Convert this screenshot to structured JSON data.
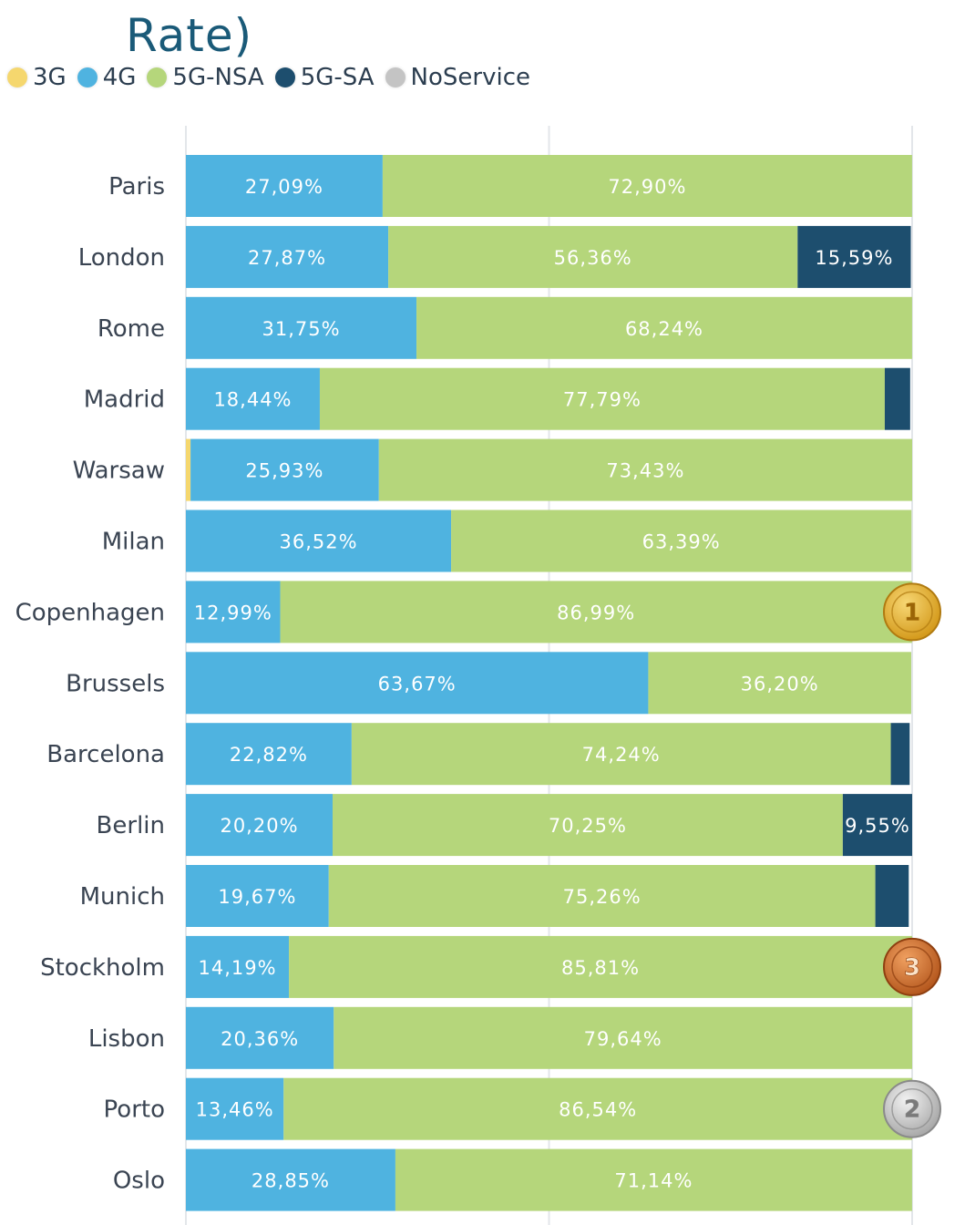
{
  "chart_data": {
    "type": "bar",
    "orientation": "horizontal",
    "stacked": true,
    "title": "Rate)",
    "categories": [
      "Paris",
      "London",
      "Rome",
      "Madrid",
      "Warsaw",
      "Milan",
      "Copenhagen",
      "Brussels",
      "Barcelona",
      "Berlin",
      "Munich",
      "Stockholm",
      "Lisbon",
      "Porto",
      "Oslo"
    ],
    "series": [
      {
        "name": "3G",
        "color": "#f5d76e",
        "values": [
          0,
          0,
          0,
          0,
          0.64,
          0,
          0,
          0,
          0,
          0,
          0,
          0,
          0,
          0,
          0
        ]
      },
      {
        "name": "4G",
        "color": "#4fb3e0",
        "values": [
          27.09,
          27.87,
          31.75,
          18.44,
          25.93,
          36.52,
          12.99,
          63.67,
          22.82,
          20.2,
          19.67,
          14.19,
          20.36,
          13.46,
          28.85
        ]
      },
      {
        "name": "5G-NSA",
        "color": "#b5d67b",
        "values": [
          72.9,
          56.36,
          68.24,
          77.79,
          73.43,
          63.39,
          86.99,
          36.2,
          74.24,
          70.25,
          75.26,
          85.81,
          79.64,
          86.54,
          71.14
        ]
      },
      {
        "name": "5G-SA",
        "color": "#1d4e6e",
        "values": [
          0,
          15.59,
          0,
          3.5,
          0,
          0,
          0,
          0,
          2.6,
          9.55,
          4.6,
          0,
          0,
          0,
          0
        ]
      },
      {
        "name": "NoService",
        "color": "#c4c4c4",
        "values": [
          0,
          0,
          0,
          0,
          0,
          0,
          0,
          0,
          0,
          0,
          0,
          0,
          0,
          0,
          0
        ]
      }
    ],
    "labels": [
      [
        "",
        "27,09%",
        "72,90%",
        "",
        ""
      ],
      [
        "",
        "27,87%",
        "56,36%",
        "15,59%",
        ""
      ],
      [
        "",
        "31,75%",
        "68,24%",
        "",
        ""
      ],
      [
        "",
        "18,44%",
        "77,79%",
        "",
        ""
      ],
      [
        "",
        "25,93%",
        "73,43%",
        "",
        ""
      ],
      [
        "",
        "36,52%",
        "63,39%",
        "",
        ""
      ],
      [
        "",
        "12,99%",
        "86,99%",
        "",
        ""
      ],
      [
        "",
        "63,67%",
        "36,20%",
        "",
        ""
      ],
      [
        "",
        "22,82%",
        "74,24%",
        "",
        ""
      ],
      [
        "",
        "20,20%",
        "70,25%",
        "9,55%",
        ""
      ],
      [
        "",
        "19,67%",
        "75,26%",
        "",
        ""
      ],
      [
        "",
        "14,19%",
        "85,81%",
        "",
        ""
      ],
      [
        "",
        "20,36%",
        "79,64%",
        "",
        ""
      ],
      [
        "",
        "13,46%",
        "86,54%",
        "",
        ""
      ],
      [
        "",
        "28,85%",
        "71,14%",
        "",
        ""
      ]
    ],
    "xlim": [
      0,
      100
    ],
    "grid": true,
    "legend_position": "top-left",
    "medals": [
      {
        "category": "Copenhagen",
        "rank": "1",
        "type": "gold"
      },
      {
        "category": "Stockholm",
        "rank": "3",
        "type": "bronze"
      },
      {
        "category": "Porto",
        "rank": "2",
        "type": "silver"
      }
    ]
  }
}
